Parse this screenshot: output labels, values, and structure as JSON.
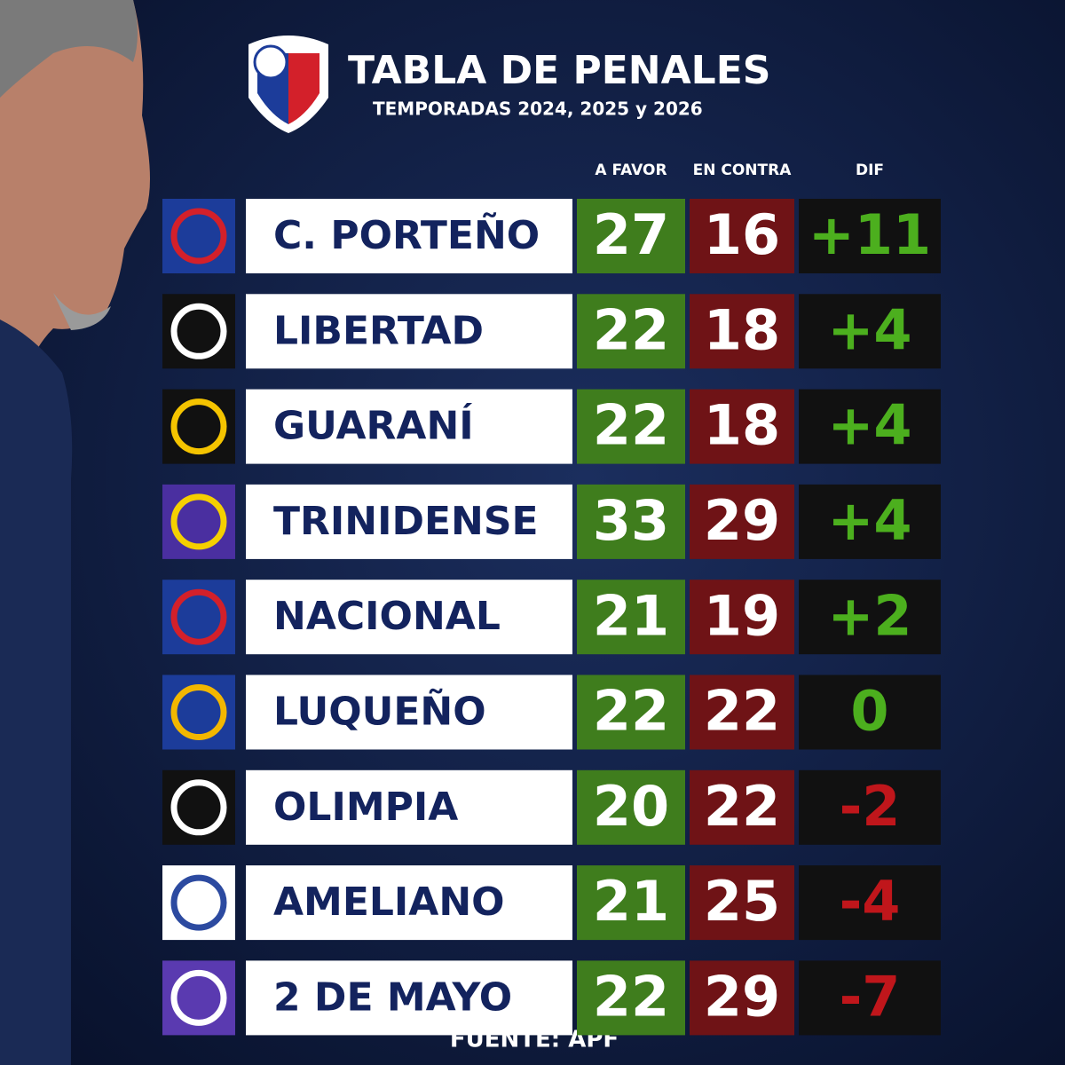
{
  "header": {
    "title": "TABLA DE PENALES",
    "subtitle": "TEMPORADAS 2024, 2025 y 2026"
  },
  "table": {
    "columns": [
      "A FAVOR",
      "EN CONTRA",
      "DIF"
    ],
    "rows": [
      {
        "team": "C. PORTEÑO",
        "favor": 27,
        "contra": 16,
        "dif": "+11"
      },
      {
        "team": "LIBERTAD",
        "favor": 22,
        "contra": 18,
        "dif": "+4"
      },
      {
        "team": "GUARANÍ",
        "favor": 22,
        "contra": 18,
        "dif": "+4"
      },
      {
        "team": "TRINIDENSE",
        "favor": 33,
        "contra": 29,
        "dif": "+4"
      },
      {
        "team": "NACIONAL",
        "favor": 21,
        "contra": 19,
        "dif": "+2"
      },
      {
        "team": "LUQUEÑO",
        "favor": 22,
        "contra": 22,
        "dif": "0"
      },
      {
        "team": "OLIMPIA",
        "favor": 20,
        "contra": 22,
        "dif": "-2"
      },
      {
        "team": "AMELIANO",
        "favor": 21,
        "contra": 25,
        "dif": "-4"
      },
      {
        "team": "2 DE MAYO",
        "favor": 22,
        "contra": 29,
        "dif": "-7"
      }
    ]
  },
  "footer": {
    "source": "FUENTE: APF"
  }
}
